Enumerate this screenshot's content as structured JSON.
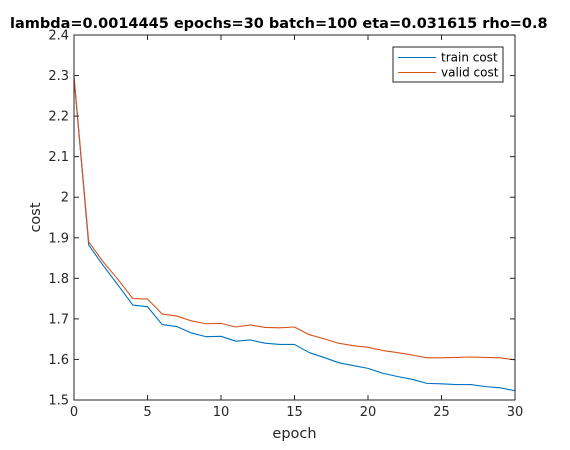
{
  "chart_data": {
    "type": "line",
    "title": "lambda=0.0014445 epochs=30 batch=100 eta=0.031615 rho=0.8",
    "xlabel": "epoch",
    "ylabel": "cost",
    "xlim": [
      0,
      30
    ],
    "ylim": [
      1.5,
      2.4
    ],
    "xticks": [
      "0",
      "5",
      "10",
      "15",
      "20",
      "25",
      "30"
    ],
    "yticks": [
      "1.5",
      "1.6",
      "1.7",
      "1.8",
      "1.9",
      "2",
      "2.1",
      "2.2",
      "2.3",
      "2.4"
    ],
    "grid": false,
    "legend_position": "top-right",
    "x": [
      0,
      1,
      2,
      3,
      4,
      5,
      6,
      7,
      8,
      9,
      10,
      11,
      12,
      13,
      14,
      15,
      16,
      17,
      18,
      19,
      20,
      21,
      22,
      23,
      24,
      25,
      26,
      27,
      28,
      29,
      30
    ],
    "series": [
      {
        "name": "train cost",
        "color": "#0072BD",
        "values": [
          2.295,
          1.882,
          1.831,
          1.783,
          1.734,
          1.73,
          1.686,
          1.681,
          1.665,
          1.656,
          1.657,
          1.645,
          1.648,
          1.64,
          1.637,
          1.637,
          1.617,
          1.605,
          1.592,
          1.585,
          1.578,
          1.566,
          1.558,
          1.551,
          1.541,
          1.54,
          1.538,
          1.538,
          1.533,
          1.53,
          1.523
        ]
      },
      {
        "name": "valid cost",
        "color": "#D95319",
        "values": [
          2.298,
          1.89,
          1.84,
          1.797,
          1.75,
          1.749,
          1.712,
          1.707,
          1.695,
          1.688,
          1.689,
          1.68,
          1.685,
          1.679,
          1.678,
          1.68,
          1.661,
          1.651,
          1.64,
          1.634,
          1.63,
          1.622,
          1.617,
          1.611,
          1.604,
          1.604,
          1.605,
          1.606,
          1.605,
          1.604,
          1.599
        ]
      }
    ]
  }
}
